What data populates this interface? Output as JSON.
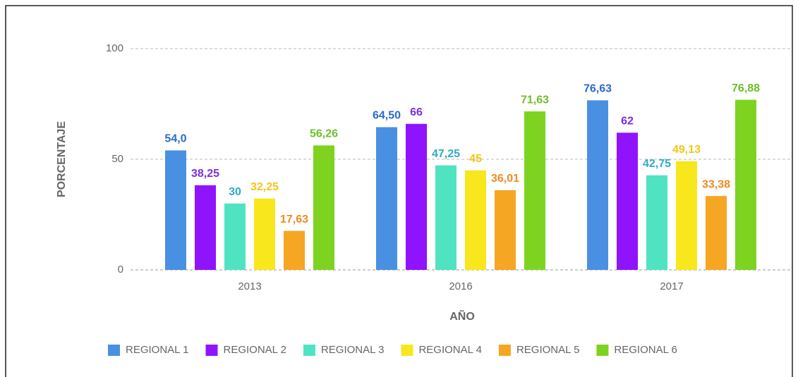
{
  "chart_data": {
    "type": "bar",
    "x_label": "AÑO",
    "y_label": "PORCENTAJE",
    "categories": [
      "2013",
      "2016",
      "2017"
    ],
    "series": [
      {
        "name": "REGIONAL 1",
        "color": "#4a90e2",
        "label_color": "#2a6bc9",
        "values": [
          54.0,
          64.5,
          76.63
        ],
        "value_labels": [
          "54,0",
          "64,50",
          "76,63"
        ]
      },
      {
        "name": "REGIONAL 2",
        "color": "#9013fe",
        "label_color": "#7a2fe0",
        "values": [
          38.25,
          66,
          62
        ],
        "value_labels": [
          "38,25",
          "66",
          "62"
        ]
      },
      {
        "name": "REGIONAL 3",
        "color": "#50e3c2",
        "label_color": "#2fa9c9",
        "values": [
          30,
          47.25,
          42.75
        ],
        "value_labels": [
          "30",
          "47,25",
          "42,75"
        ]
      },
      {
        "name": "REGIONAL 4",
        "color": "#f8e71c",
        "label_color": "#f5c518",
        "values": [
          32.25,
          45,
          49.13
        ],
        "value_labels": [
          "32,25",
          "45",
          "49,13"
        ]
      },
      {
        "name": "REGIONAL 5",
        "color": "#f5a623",
        "label_color": "#f08a24",
        "values": [
          17.63,
          36.01,
          33.38
        ],
        "value_labels": [
          "17,63",
          "36,01",
          "33,38"
        ]
      },
      {
        "name": "REGIONAL 6",
        "color": "#7ed321",
        "label_color": "#6cc02a",
        "values": [
          56.26,
          71.63,
          76.88
        ],
        "value_labels": [
          "56,26",
          "71,63",
          "76,88"
        ]
      }
    ],
    "ylim": [
      0,
      100
    ],
    "yticks": [
      0,
      50,
      100
    ],
    "grid": true,
    "legend": "bottom"
  }
}
